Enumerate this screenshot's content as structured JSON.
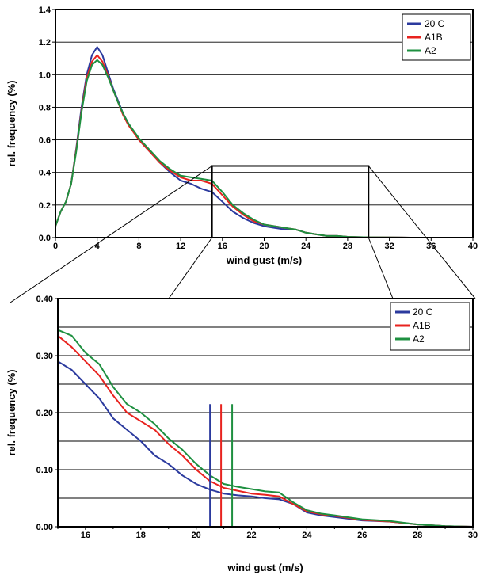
{
  "chart_data": [
    {
      "type": "line",
      "xlabel": "wind gust (m/s)",
      "ylabel": "rel. frequency (%)",
      "xlim": [
        0,
        40
      ],
      "ylim": [
        0,
        1.4
      ],
      "x_ticks": [
        "0",
        "4",
        "8",
        "12",
        "16",
        "20",
        "24",
        "28",
        "32",
        "36",
        "40"
      ],
      "y_ticks": [
        "0.0",
        "0.2",
        "0.4",
        "0.6",
        "0.8",
        "1.0",
        "1.2",
        "1.4"
      ],
      "grid": "horizontal",
      "legend_position": "top-right",
      "inset_box": {
        "x_range": [
          15,
          30
        ],
        "y_range": [
          0,
          0.44
        ]
      },
      "series": [
        {
          "name": "20 C",
          "color": "#2b3a9e",
          "x": [
            0,
            0.5,
            1,
            1.5,
            2,
            2.5,
            3,
            3.5,
            4,
            4.5,
            5,
            5.5,
            6,
            6.5,
            7,
            8,
            9,
            10,
            11,
            12,
            13,
            14,
            15,
            16,
            17,
            18,
            19,
            20,
            21,
            22,
            23,
            24,
            25,
            26,
            27,
            28,
            29,
            30,
            32,
            34,
            36,
            38,
            40
          ],
          "y": [
            0.07,
            0.16,
            0.22,
            0.33,
            0.55,
            0.8,
            1.0,
            1.12,
            1.17,
            1.12,
            1.02,
            0.92,
            0.84,
            0.76,
            0.7,
            0.6,
            0.53,
            0.46,
            0.4,
            0.35,
            0.33,
            0.3,
            0.28,
            0.22,
            0.16,
            0.12,
            0.09,
            0.07,
            0.06,
            0.05,
            0.05,
            0.03,
            0.02,
            0.01,
            0.01,
            0.005,
            0.003,
            0.002,
            0.001,
            0.0,
            0.0,
            0.0,
            0.0
          ]
        },
        {
          "name": "A1B",
          "color": "#e8231f",
          "x": [
            0,
            0.5,
            1,
            1.5,
            2,
            2.5,
            3,
            3.5,
            4,
            4.5,
            5,
            5.5,
            6,
            6.5,
            7,
            8,
            9,
            10,
            11,
            12,
            13,
            14,
            15,
            16,
            17,
            18,
            19,
            20,
            21,
            22,
            23,
            24,
            25,
            26,
            27,
            28,
            29,
            30,
            32,
            34,
            36,
            38,
            40
          ],
          "y": [
            0.07,
            0.16,
            0.22,
            0.33,
            0.54,
            0.78,
            0.98,
            1.08,
            1.12,
            1.08,
            1.0,
            0.91,
            0.83,
            0.75,
            0.69,
            0.6,
            0.53,
            0.46,
            0.41,
            0.37,
            0.35,
            0.35,
            0.33,
            0.26,
            0.19,
            0.14,
            0.1,
            0.08,
            0.07,
            0.06,
            0.05,
            0.03,
            0.02,
            0.01,
            0.01,
            0.005,
            0.003,
            0.002,
            0.001,
            0.0,
            0.0,
            0.0,
            0.0
          ]
        },
        {
          "name": "A2",
          "color": "#1e9040",
          "x": [
            0,
            0.5,
            1,
            1.5,
            2,
            2.5,
            3,
            3.5,
            4,
            4.5,
            5,
            5.5,
            6,
            6.5,
            7,
            8,
            9,
            10,
            11,
            12,
            13,
            14,
            15,
            16,
            17,
            18,
            19,
            20,
            21,
            22,
            23,
            24,
            25,
            26,
            27,
            28,
            29,
            30,
            32,
            34,
            36,
            38,
            40
          ],
          "y": [
            0.07,
            0.16,
            0.22,
            0.33,
            0.53,
            0.77,
            0.96,
            1.06,
            1.09,
            1.06,
            0.99,
            0.91,
            0.83,
            0.76,
            0.7,
            0.61,
            0.54,
            0.47,
            0.42,
            0.38,
            0.37,
            0.36,
            0.35,
            0.28,
            0.2,
            0.15,
            0.11,
            0.08,
            0.07,
            0.06,
            0.05,
            0.03,
            0.02,
            0.01,
            0.01,
            0.005,
            0.003,
            0.002,
            0.001,
            0.0,
            0.0,
            0.0,
            0.0
          ]
        }
      ]
    },
    {
      "type": "line",
      "xlabel": "wind gust (m/s)",
      "ylabel": "rel. frequency (%)",
      "xlim": [
        15,
        30
      ],
      "ylim": [
        0,
        0.4
      ],
      "x_ticks": [
        "16",
        "18",
        "20",
        "22",
        "24",
        "26",
        "28",
        "30"
      ],
      "y_ticks": [
        "0.00",
        "0.10",
        "0.20",
        "0.30",
        "0.40"
      ],
      "grid": "horizontal",
      "legend_position": "top-right",
      "markers": [
        {
          "series": "20 C",
          "x": 20.5
        },
        {
          "series": "A1B",
          "x": 20.9
        },
        {
          "series": "A2",
          "x": 21.3
        }
      ],
      "series": [
        {
          "name": "20 C",
          "color": "#2b3a9e",
          "x": [
            15,
            15.5,
            16,
            16.5,
            17,
            17.5,
            18,
            18.5,
            19,
            19.5,
            20,
            20.5,
            21,
            21.5,
            22,
            22.5,
            23,
            23.5,
            24,
            24.5,
            25,
            26,
            27,
            28,
            29,
            30
          ],
          "y": [
            0.29,
            0.275,
            0.25,
            0.225,
            0.19,
            0.17,
            0.15,
            0.125,
            0.11,
            0.09,
            0.075,
            0.065,
            0.058,
            0.055,
            0.053,
            0.05,
            0.048,
            0.04,
            0.025,
            0.02,
            0.017,
            0.011,
            0.009,
            0.004,
            0.001,
            0.0
          ]
        },
        {
          "name": "A1B",
          "color": "#e8231f",
          "x": [
            15,
            15.5,
            16,
            16.5,
            17,
            17.5,
            18,
            18.5,
            19,
            19.5,
            20,
            20.5,
            21,
            21.5,
            22,
            22.5,
            23,
            23.5,
            24,
            24.5,
            25,
            26,
            27,
            28,
            29,
            30
          ],
          "y": [
            0.335,
            0.315,
            0.29,
            0.265,
            0.23,
            0.2,
            0.185,
            0.17,
            0.145,
            0.125,
            0.1,
            0.08,
            0.068,
            0.063,
            0.058,
            0.056,
            0.053,
            0.04,
            0.027,
            0.022,
            0.019,
            0.012,
            0.009,
            0.004,
            0.001,
            0.0
          ]
        },
        {
          "name": "A2",
          "color": "#1e9040",
          "x": [
            15,
            15.5,
            16,
            16.5,
            17,
            17.5,
            18,
            18.5,
            19,
            19.5,
            20,
            20.5,
            21,
            21.5,
            22,
            22.5,
            23,
            23.5,
            24,
            24.5,
            25,
            26,
            27,
            28,
            29,
            30
          ],
          "y": [
            0.345,
            0.335,
            0.305,
            0.285,
            0.245,
            0.215,
            0.2,
            0.18,
            0.155,
            0.135,
            0.11,
            0.09,
            0.075,
            0.07,
            0.066,
            0.062,
            0.06,
            0.043,
            0.029,
            0.023,
            0.02,
            0.013,
            0.01,
            0.004,
            0.001,
            0.0
          ]
        }
      ]
    }
  ]
}
